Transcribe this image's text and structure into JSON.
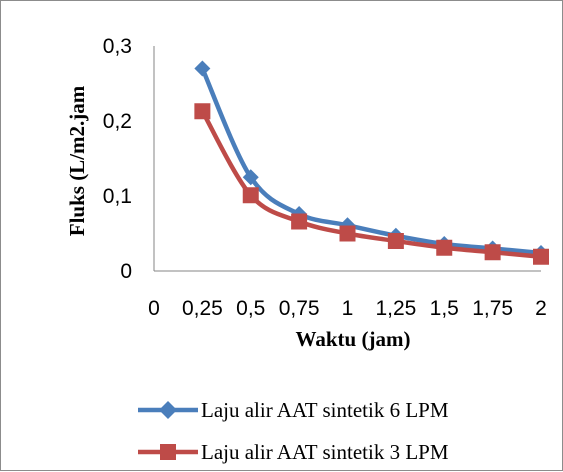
{
  "chart_data": {
    "type": "line",
    "xlabel": "Waktu (jam)",
    "ylabel": "Fluks (L/m2.jam",
    "x_ticks": [
      "0",
      "0,25",
      "0,5",
      "0,75",
      "1",
      "1,25",
      "1,5",
      "1,75",
      "2"
    ],
    "y_ticks": [
      {
        "value": 0,
        "label": "0"
      },
      {
        "value": 0.1,
        "label": "0,1"
      },
      {
        "value": 0.2,
        "label": "0,2"
      },
      {
        "value": 0.3,
        "label": "0,3"
      }
    ],
    "ylim": [
      0,
      0.3
    ],
    "xlim": [
      0,
      2
    ],
    "grid": false,
    "legend_position": "bottom",
    "series": [
      {
        "name": "Laju alir AAT sintetik 6 LPM",
        "color": "#4a7ebb",
        "marker": "diamond",
        "x": [
          0.25,
          0.5,
          0.75,
          1,
          1.25,
          1.5,
          1.75,
          2
        ],
        "values": [
          0.27,
          0.125,
          0.076,
          0.061,
          0.047,
          0.036,
          0.03,
          0.024
        ]
      },
      {
        "name": "Laju alir AAT sintetik 3 LPM",
        "color": "#be4b48",
        "marker": "square",
        "x": [
          0.25,
          0.5,
          0.75,
          1,
          1.25,
          1.5,
          1.75,
          2
        ],
        "values": [
          0.213,
          0.101,
          0.066,
          0.05,
          0.04,
          0.031,
          0.025,
          0.019
        ]
      }
    ]
  }
}
